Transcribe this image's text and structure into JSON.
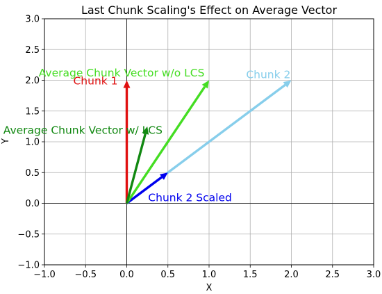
{
  "chart_data": {
    "type": "quiver",
    "title": "Last Chunk Scaling's Effect on Average Vector",
    "xlabel": "X",
    "ylabel": "Y",
    "xlim": [
      -1.0,
      3.0
    ],
    "ylim": [
      -1.0,
      3.0
    ],
    "xticks": [
      -1.0,
      -0.5,
      0.0,
      0.5,
      1.0,
      1.5,
      2.0,
      2.5,
      3.0
    ],
    "yticks": [
      -1.0,
      -0.5,
      0.0,
      0.5,
      1.0,
      1.5,
      2.0,
      2.5,
      3.0
    ],
    "xtick_labels": [
      "−1.0",
      "−0.5",
      "0.0",
      "0.5",
      "1.0",
      "1.5",
      "2.0",
      "2.5",
      "3.0"
    ],
    "ytick_labels": [
      "−1.0",
      "−0.5",
      "0.0",
      "0.5",
      "1.0",
      "1.5",
      "2.0",
      "2.5",
      "3.0"
    ],
    "grid": true,
    "axis_lines_through_origin": true,
    "vectors": [
      {
        "name": "Chunk 1",
        "label": "Chunk 1",
        "origin": [
          0,
          0
        ],
        "end": [
          0,
          2.0
        ],
        "color": "#e01010",
        "label_pos": [
          -0.65,
          2.0
        ],
        "label_color": "#e01010"
      },
      {
        "name": "Chunk 2",
        "label": "Chunk 2",
        "origin": [
          0,
          0
        ],
        "end": [
          2.0,
          2.0
        ],
        "color": "#87ceeb",
        "label_pos": [
          1.45,
          2.1
        ],
        "label_color": "#87ceeb"
      },
      {
        "name": "Chunk 2 Scaled",
        "label": "Chunk 2 Scaled",
        "origin": [
          0,
          0
        ],
        "end": [
          0.5,
          0.5
        ],
        "color": "#0000ee",
        "label_pos": [
          0.26,
          0.1
        ],
        "label_color": "#0000ee"
      },
      {
        "name": "Average Chunk Vector w/o LCS",
        "label": "Average Chunk Vector w/o LCS",
        "origin": [
          0,
          0
        ],
        "end": [
          1.0,
          2.0
        ],
        "color": "#44dd22",
        "label_pos": [
          -1.07,
          2.13
        ],
        "label_color": "#44dd22"
      },
      {
        "name": "Average Chunk Vector w/ LCS",
        "label": "Average Chunk Vector w/ LCS",
        "origin": [
          0,
          0
        ],
        "end": [
          0.25,
          1.25
        ],
        "color": "#118811",
        "label_pos": [
          -1.5,
          1.2
        ],
        "label_color": "#118811"
      }
    ]
  }
}
